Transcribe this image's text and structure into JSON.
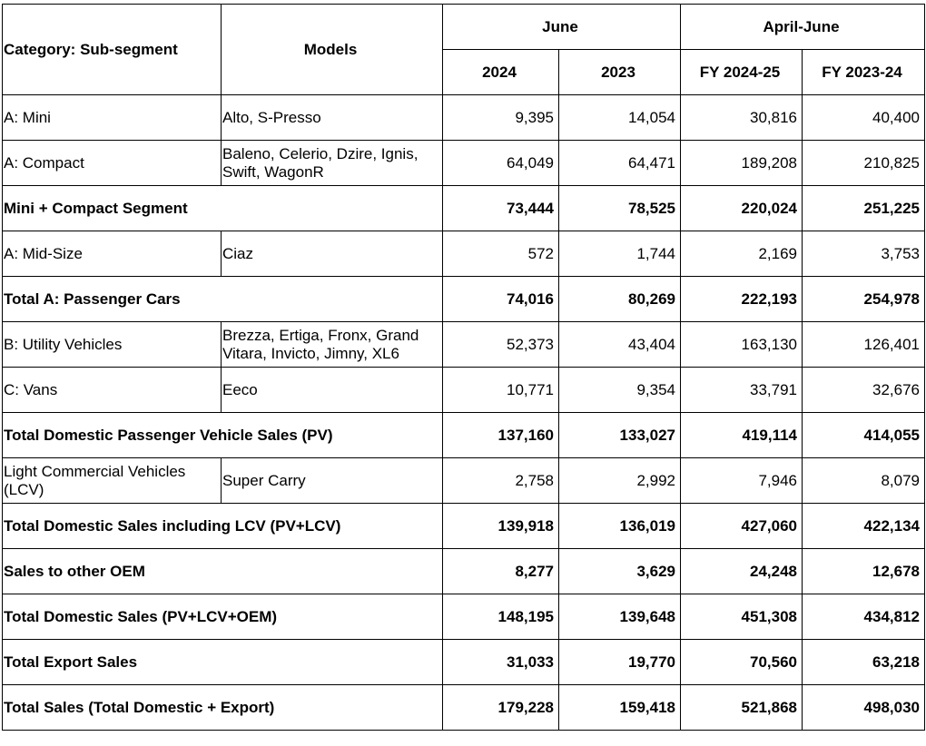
{
  "header": {
    "category": "Category: Sub-segment",
    "models": "Models",
    "june": "June",
    "april_june": "April-June",
    "y2024": "2024",
    "y2023": "2023",
    "fy2425": "FY 2024-25",
    "fy2324": "FY 2023-24"
  },
  "rows": [
    {
      "category": "A: Mini",
      "models": "Alto, S-Presso",
      "v": [
        "9,395",
        "14,054",
        "30,816",
        "40,400"
      ]
    },
    {
      "category": "A: Compact",
      "models": "Baleno, Celerio, Dzire, Ignis, Swift, WagonR",
      "v": [
        "64,049",
        "64,471",
        "189,208",
        "210,825"
      ]
    },
    {
      "category": "Mini + Compact Segment",
      "models": "",
      "v": [
        "73,444",
        "78,525",
        "220,024",
        "251,225"
      ]
    },
    {
      "category": "A: Mid-Size",
      "models": "Ciaz",
      "v": [
        "572",
        "1,744",
        "2,169",
        "3,753"
      ]
    },
    {
      "category": "Total A: Passenger Cars",
      "models": "",
      "v": [
        "74,016",
        "80,269",
        "222,193",
        "254,978"
      ]
    },
    {
      "category": "B: Utility Vehicles",
      "models": "Brezza, Ertiga, Fronx, Grand Vitara, Invicto, Jimny, XL6",
      "v": [
        "52,373",
        "43,404",
        "163,130",
        "126,401"
      ]
    },
    {
      "category": "C: Vans",
      "models": "Eeco",
      "v": [
        "10,771",
        "9,354",
        "33,791",
        "32,676"
      ]
    },
    {
      "category": "Total Domestic Passenger Vehicle Sales (PV)",
      "models": "",
      "v": [
        "137,160",
        "133,027",
        "419,114",
        "414,055"
      ]
    },
    {
      "category": "Light Commercial Vehicles (LCV)",
      "models": "Super Carry",
      "v": [
        "2,758",
        "2,992",
        "7,946",
        "8,079"
      ]
    },
    {
      "category": "Total Domestic Sales including LCV (PV+LCV)",
      "models": "",
      "v": [
        "139,918",
        "136,019",
        "427,060",
        "422,134"
      ]
    },
    {
      "category": "Sales to other OEM",
      "models": "",
      "v": [
        "8,277",
        "3,629",
        "24,248",
        "12,678"
      ]
    },
    {
      "category": "Total Domestic Sales (PV+LCV+OEM)",
      "models": "",
      "v": [
        "148,195",
        "139,648",
        "451,308",
        "434,812"
      ]
    },
    {
      "category": "Total Export Sales",
      "models": "",
      "v": [
        "31,033",
        "19,770",
        "70,560",
        "63,218"
      ]
    },
    {
      "category": "Total Sales (Total Domestic + Export)",
      "models": "",
      "v": [
        "179,228",
        "159,418",
        "521,868",
        "498,030"
      ]
    }
  ]
}
